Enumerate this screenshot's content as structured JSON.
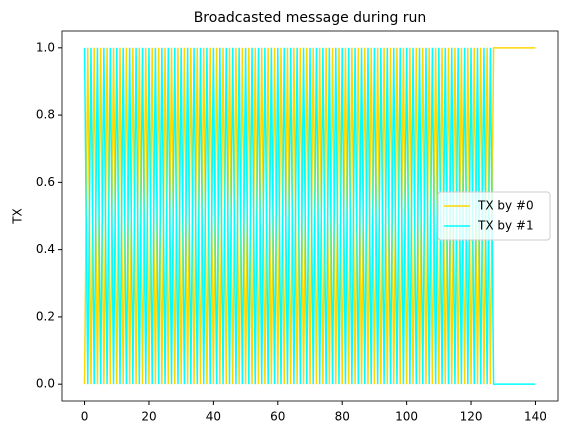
{
  "chart_data": {
    "type": "line",
    "title": "Broadcasted message during run",
    "y_label": "TX",
    "x": [
      0,
      1,
      2,
      3,
      4,
      5,
      6,
      7,
      8,
      9,
      10,
      11,
      12,
      13,
      14,
      15,
      16,
      17,
      18,
      19,
      20,
      21,
      22,
      23,
      24,
      25,
      26,
      27,
      28,
      29,
      30,
      31,
      32,
      33,
      34,
      35,
      36,
      37,
      38,
      39,
      40,
      41,
      42,
      43,
      44,
      45,
      46,
      47,
      48,
      49,
      50,
      51,
      52,
      53,
      54,
      55,
      56,
      57,
      58,
      59,
      60,
      61,
      62,
      63,
      64,
      65,
      66,
      67,
      68,
      69,
      70,
      71,
      72,
      73,
      74,
      75,
      76,
      77,
      78,
      79,
      80,
      81,
      82,
      83,
      84,
      85,
      86,
      87,
      88,
      89,
      90,
      91,
      92,
      93,
      94,
      95,
      96,
      97,
      98,
      99,
      100,
      101,
      102,
      103,
      104,
      105,
      106,
      107,
      108,
      109,
      110,
      111,
      112,
      113,
      114,
      115,
      116,
      117,
      118,
      119,
      120,
      121,
      122,
      123,
      124,
      125,
      126,
      127,
      128,
      129,
      130,
      131,
      132,
      133,
      134,
      135,
      136,
      137,
      138,
      139,
      140
    ],
    "series": [
      {
        "name": "TX by #0",
        "color": "#ffd700",
        "values": [
          0,
          1,
          0,
          1,
          0,
          1,
          0,
          1,
          0,
          1,
          0,
          1,
          0,
          1,
          0,
          1,
          0,
          1,
          0,
          1,
          0,
          1,
          0,
          1,
          0,
          1,
          0,
          1,
          0,
          1,
          0,
          1,
          0,
          1,
          0,
          1,
          0,
          1,
          0,
          1,
          0,
          1,
          0,
          1,
          0,
          1,
          0,
          1,
          0,
          1,
          0,
          1,
          0,
          1,
          0,
          1,
          0,
          1,
          0,
          1,
          0,
          1,
          0,
          1,
          0,
          1,
          0,
          1,
          0,
          1,
          0,
          1,
          0,
          1,
          0,
          1,
          0,
          1,
          0,
          1,
          0,
          1,
          0,
          1,
          0,
          1,
          0,
          1,
          0,
          1,
          0,
          1,
          0,
          1,
          0,
          1,
          0,
          1,
          0,
          1,
          0,
          1,
          0,
          1,
          0,
          1,
          0,
          1,
          0,
          1,
          0,
          1,
          0,
          1,
          0,
          1,
          0,
          1,
          0,
          1,
          0,
          1,
          0,
          1,
          0,
          1,
          0,
          1,
          1,
          1,
          1,
          1,
          1,
          1,
          1,
          1,
          1,
          1,
          1,
          1,
          1
        ]
      },
      {
        "name": "TX by #1",
        "color": "#00ffff",
        "values": [
          1,
          0,
          1,
          0,
          1,
          0,
          1,
          0,
          1,
          0,
          1,
          0,
          1,
          0,
          1,
          0,
          1,
          0,
          1,
          0,
          1,
          0,
          1,
          0,
          1,
          0,
          1,
          0,
          1,
          0,
          1,
          0,
          1,
          0,
          1,
          0,
          1,
          0,
          1,
          0,
          1,
          0,
          1,
          0,
          1,
          0,
          1,
          0,
          1,
          0,
          1,
          0,
          1,
          0,
          1,
          0,
          1,
          0,
          1,
          0,
          1,
          0,
          1,
          0,
          1,
          0,
          1,
          0,
          1,
          0,
          1,
          0,
          1,
          0,
          1,
          0,
          1,
          0,
          1,
          0,
          1,
          0,
          1,
          0,
          1,
          0,
          1,
          0,
          1,
          0,
          1,
          0,
          1,
          0,
          1,
          0,
          1,
          0,
          1,
          0,
          1,
          0,
          1,
          0,
          1,
          0,
          1,
          0,
          1,
          0,
          1,
          0,
          1,
          0,
          1,
          0,
          1,
          0,
          1,
          0,
          1,
          0,
          1,
          0,
          1,
          0,
          1,
          0,
          0,
          0,
          0,
          0,
          0,
          0,
          0,
          0,
          0,
          0,
          0,
          0,
          0
        ]
      }
    ],
    "xlim": [
      -7,
      147
    ],
    "xticks": [
      0,
      20,
      40,
      60,
      80,
      100,
      120,
      140
    ],
    "ylim": [
      -0.05,
      1.05
    ],
    "yticks": [
      {
        "value": 0,
        "label": "0.0"
      },
      0.2,
      0.4,
      0.6,
      0.8,
      {
        "value": 1,
        "label": "1.0"
      }
    ],
    "legend": "right"
  }
}
